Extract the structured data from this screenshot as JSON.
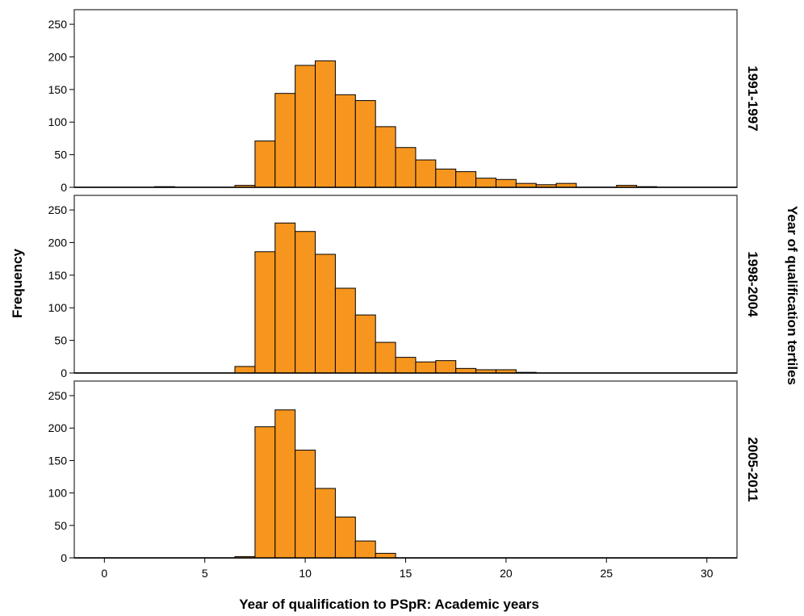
{
  "chart_data": {
    "type": "bar",
    "subtype": "histogram-faceted",
    "xlabel": "Year of qualification to PSpR: Academic years",
    "ylabel": "Frequency",
    "facet_title": "Year of qualification tertiles",
    "xlim": [
      -1.5,
      31.5
    ],
    "ylim": [
      0,
      260
    ],
    "xticks": [
      0,
      5,
      10,
      15,
      20,
      25,
      30
    ],
    "yticks": [
      0,
      50,
      100,
      150,
      200,
      250
    ],
    "bin_width": 1,
    "bar_color": "#f7961e",
    "panels": [
      {
        "name": "1991-1997",
        "bins": [
          {
            "start": 2.5,
            "end": 3.5,
            "value": 1
          },
          {
            "start": 6.5,
            "end": 7.5,
            "value": 3
          },
          {
            "start": 7.5,
            "end": 8.5,
            "value": 71
          },
          {
            "start": 8.5,
            "end": 9.5,
            "value": 144
          },
          {
            "start": 9.5,
            "end": 10.5,
            "value": 187
          },
          {
            "start": 10.5,
            "end": 11.5,
            "value": 194
          },
          {
            "start": 11.5,
            "end": 12.5,
            "value": 142
          },
          {
            "start": 12.5,
            "end": 13.5,
            "value": 133
          },
          {
            "start": 13.5,
            "end": 14.5,
            "value": 93
          },
          {
            "start": 14.5,
            "end": 15.5,
            "value": 61
          },
          {
            "start": 15.5,
            "end": 16.5,
            "value": 42
          },
          {
            "start": 16.5,
            "end": 17.5,
            "value": 28
          },
          {
            "start": 17.5,
            "end": 18.5,
            "value": 24
          },
          {
            "start": 18.5,
            "end": 19.5,
            "value": 14
          },
          {
            "start": 19.5,
            "end": 20.5,
            "value": 12
          },
          {
            "start": 20.5,
            "end": 21.5,
            "value": 6
          },
          {
            "start": 21.5,
            "end": 22.5,
            "value": 4
          },
          {
            "start": 22.5,
            "end": 23.5,
            "value": 6
          },
          {
            "start": 25.5,
            "end": 26.5,
            "value": 3
          },
          {
            "start": 26.5,
            "end": 27.5,
            "value": 1
          }
        ]
      },
      {
        "name": "1998-2004",
        "bins": [
          {
            "start": 6.5,
            "end": 7.5,
            "value": 10
          },
          {
            "start": 7.5,
            "end": 8.5,
            "value": 186
          },
          {
            "start": 8.5,
            "end": 9.5,
            "value": 230
          },
          {
            "start": 9.5,
            "end": 10.5,
            "value": 217
          },
          {
            "start": 10.5,
            "end": 11.5,
            "value": 182
          },
          {
            "start": 11.5,
            "end": 12.5,
            "value": 130
          },
          {
            "start": 12.5,
            "end": 13.5,
            "value": 89
          },
          {
            "start": 13.5,
            "end": 14.5,
            "value": 47
          },
          {
            "start": 14.5,
            "end": 15.5,
            "value": 24
          },
          {
            "start": 15.5,
            "end": 16.5,
            "value": 17
          },
          {
            "start": 16.5,
            "end": 17.5,
            "value": 19
          },
          {
            "start": 17.5,
            "end": 18.5,
            "value": 7
          },
          {
            "start": 18.5,
            "end": 19.5,
            "value": 5
          },
          {
            "start": 19.5,
            "end": 20.5,
            "value": 5
          },
          {
            "start": 20.5,
            "end": 21.5,
            "value": 1
          }
        ]
      },
      {
        "name": "2005-2011",
        "bins": [
          {
            "start": 6.5,
            "end": 7.5,
            "value": 2
          },
          {
            "start": 7.5,
            "end": 8.5,
            "value": 202
          },
          {
            "start": 8.5,
            "end": 9.5,
            "value": 228
          },
          {
            "start": 9.5,
            "end": 10.5,
            "value": 166
          },
          {
            "start": 10.5,
            "end": 11.5,
            "value": 107
          },
          {
            "start": 11.5,
            "end": 12.5,
            "value": 63
          },
          {
            "start": 12.5,
            "end": 13.5,
            "value": 26
          },
          {
            "start": 13.5,
            "end": 14.5,
            "value": 7
          }
        ]
      }
    ]
  }
}
